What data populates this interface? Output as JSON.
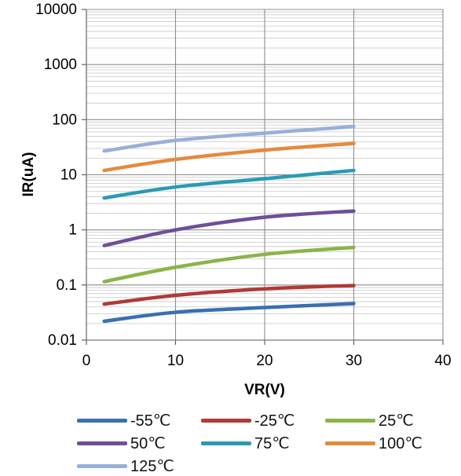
{
  "chart_data": {
    "type": "line",
    "title": "",
    "xlabel": "VR(V)",
    "ylabel": "IR(uA)",
    "xlim": [
      0,
      40
    ],
    "ylim": [
      0.01,
      10000
    ],
    "yscale": "log",
    "grid": true,
    "legend_position": "bottom",
    "x_ticks": [
      "0",
      "10",
      "20",
      "30",
      "40"
    ],
    "y_ticks": [
      "0.01",
      "0.1",
      "1",
      "10",
      "100",
      "1000",
      "10000"
    ],
    "x": [
      2,
      10,
      20,
      30
    ],
    "series": [
      {
        "name": "-55℃",
        "color": "#3a6fb0",
        "values": [
          0.022,
          0.032,
          0.039,
          0.046
        ]
      },
      {
        "name": "-25℃",
        "color": "#b03a36",
        "values": [
          0.045,
          0.065,
          0.085,
          0.098
        ]
      },
      {
        "name": "25℃",
        "color": "#8db34a",
        "values": [
          0.115,
          0.21,
          0.36,
          0.48
        ]
      },
      {
        "name": "50℃",
        "color": "#6f4f99",
        "values": [
          0.52,
          1.0,
          1.7,
          2.2
        ]
      },
      {
        "name": "75℃",
        "color": "#2a9bb5",
        "values": [
          3.8,
          6.0,
          8.5,
          12
        ]
      },
      {
        "name": "100℃",
        "color": "#e58a3c",
        "values": [
          12,
          19,
          28,
          37
        ]
      },
      {
        "name": "125℃",
        "color": "#98b0d8",
        "values": [
          27,
          42,
          57,
          75
        ]
      }
    ]
  }
}
